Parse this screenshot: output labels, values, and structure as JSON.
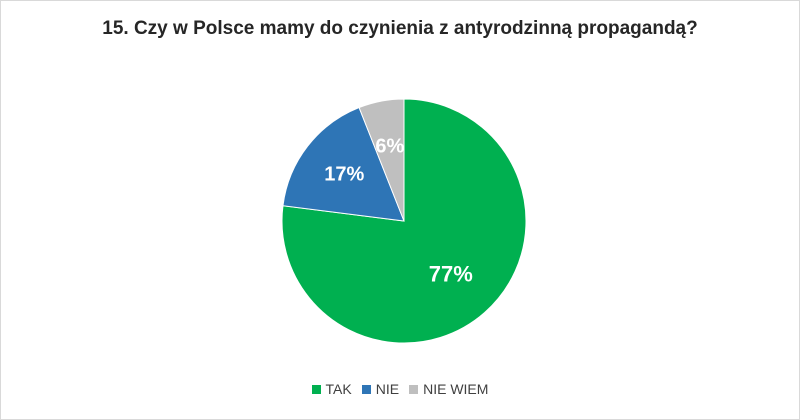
{
  "chart_data": {
    "type": "pie",
    "title": "15. Czy w Polsce mamy do czynienia z antyrodzinną propagandą?",
    "categories": [
      "TAK",
      "NIE",
      "NIE WIEM"
    ],
    "values": [
      77,
      17,
      6
    ],
    "labels": [
      "77%",
      "17%",
      "6%"
    ],
    "colors": [
      "#00b050",
      "#2e75b6",
      "#bfbfbf"
    ],
    "legend_position": "bottom"
  }
}
